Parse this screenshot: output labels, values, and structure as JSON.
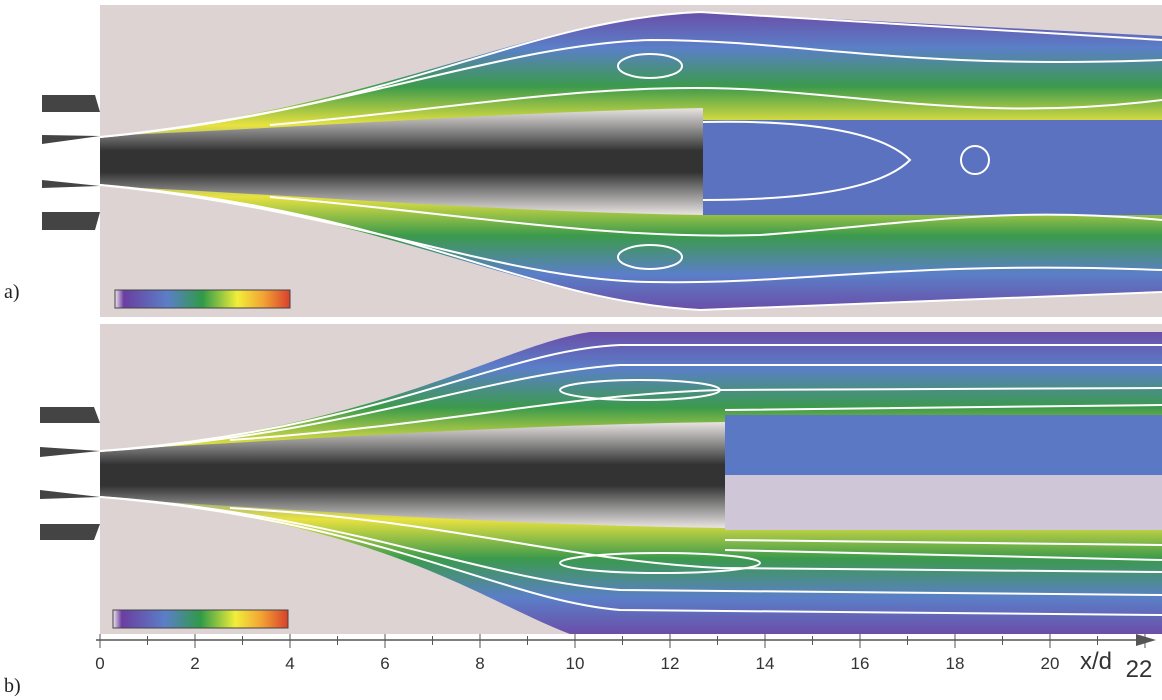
{
  "panels": [
    {
      "label": "a)"
    },
    {
      "label": "b)"
    }
  ],
  "axis": {
    "label": "x/d",
    "ticks": [
      0,
      2,
      4,
      6,
      8,
      10,
      12,
      14,
      16,
      18,
      20,
      22
    ],
    "minor_ticks": [
      1,
      3,
      5,
      7,
      9,
      11,
      13,
      15,
      17,
      19,
      21
    ]
  }
}
